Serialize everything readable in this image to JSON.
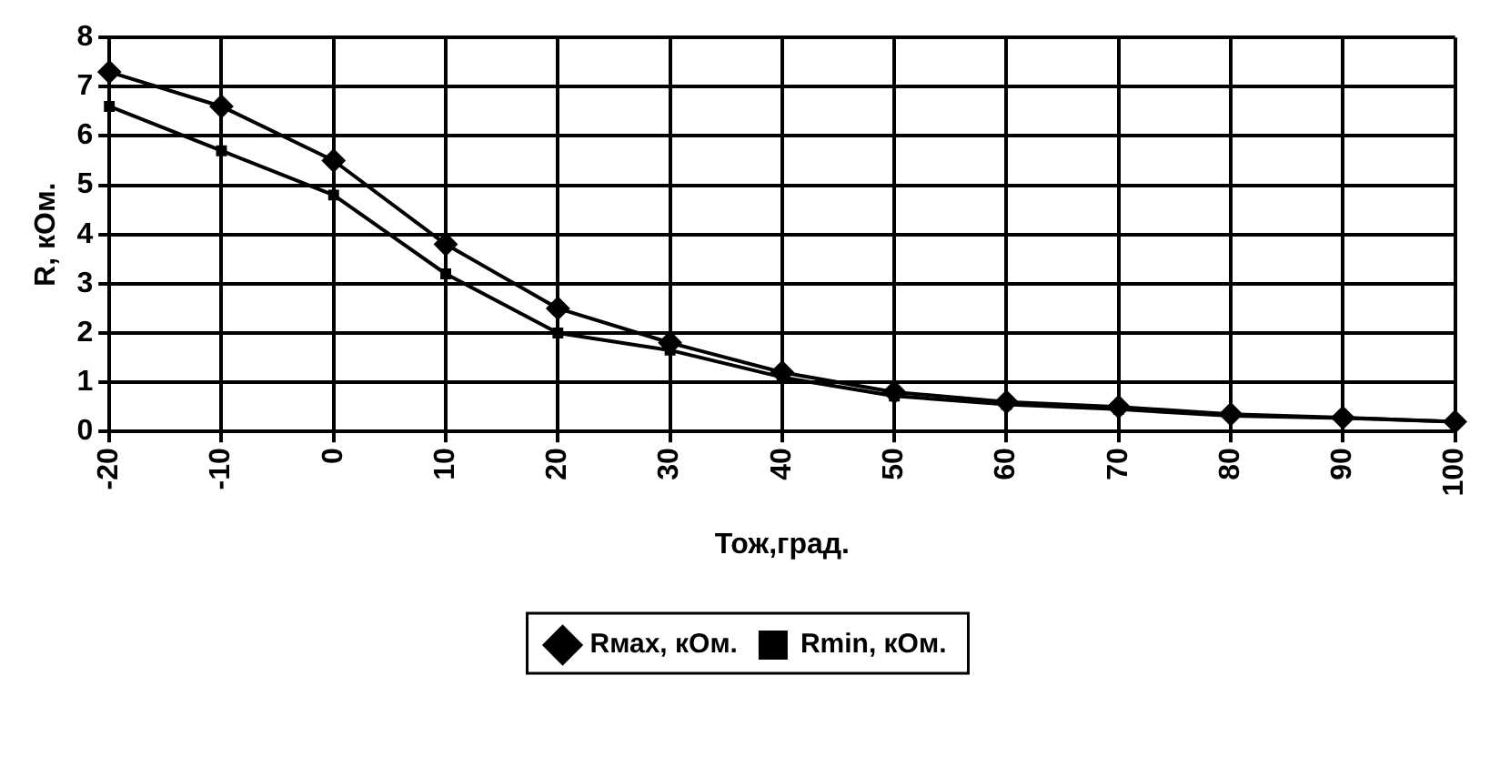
{
  "chart_data": {
    "type": "line",
    "xlabel": "Тож,град.",
    "ylabel": "R, кОм.",
    "categories": [
      "-20",
      "-10",
      "0",
      "10",
      "20",
      "30",
      "40",
      "50",
      "60",
      "70",
      "80",
      "90",
      "100"
    ],
    "ylim": [
      0,
      8
    ],
    "yticks": [
      0,
      1,
      2,
      3,
      4,
      5,
      6,
      7,
      8
    ],
    "grid": true,
    "legend": "bottom",
    "line_style": "solid",
    "series": [
      {
        "name": "Rмах, кОм.",
        "color": "#000000",
        "marker": "diamond",
        "values": [
          7.3,
          6.6,
          5.5,
          3.8,
          2.5,
          1.8,
          1.2,
          0.8,
          0.6,
          0.5,
          0.35,
          0.28,
          0.2
        ]
      },
      {
        "name": "Rmin, кОм.",
        "color": "#000000",
        "marker": "square",
        "values": [
          6.6,
          5.7,
          4.8,
          3.2,
          2.0,
          1.65,
          1.1,
          0.72,
          0.55,
          0.45,
          0.32,
          0.27,
          0.2
        ]
      }
    ]
  }
}
